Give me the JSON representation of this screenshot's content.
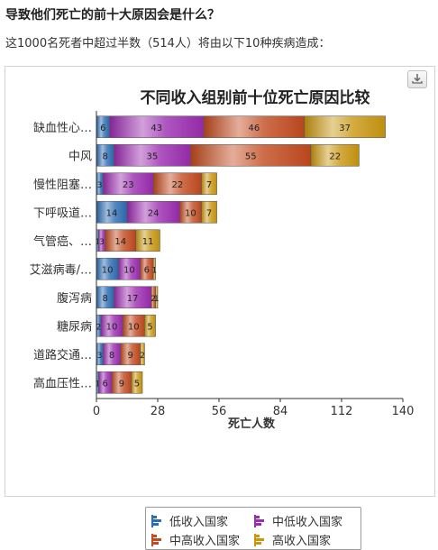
{
  "page": {
    "heading": "导致他们死亡的前十大原因会是什么？",
    "intro": "这1000名死者中超过半数（514人）将由以下10种疾病造成："
  },
  "toolbar": {
    "export_icon": "download-icon"
  },
  "chart_data": {
    "type": "bar",
    "orientation": "horizontal",
    "stacked": true,
    "title": "不同收入组别前十位死亡原因比较",
    "xlabel": "死亡人数",
    "ylabel": "",
    "xlim": [
      0,
      140
    ],
    "xticks": [
      "0",
      "28",
      "56",
      "84",
      "112",
      "140"
    ],
    "grid": false,
    "legend_position": "bottom",
    "categories": [
      "缺血性心…",
      "中风",
      "慢性阻塞…",
      "下呼吸道…",
      "气管癌、…",
      "艾滋病毒/…",
      "腹泻病",
      "糖尿病",
      "道路交通…",
      "高血压性…"
    ],
    "series": [
      {
        "name": "低收入国家",
        "color": "#2b6cb3",
        "values": [
          6,
          8,
          3,
          14,
          1,
          10,
          8,
          2,
          3,
          1
        ]
      },
      {
        "name": "中低收入国家",
        "color": "#9b2bb0",
        "values": [
          43,
          35,
          23,
          24,
          3,
          10,
          17,
          10,
          8,
          6
        ]
      },
      {
        "name": "中高收入国家",
        "color": "#c24a1e",
        "values": [
          46,
          55,
          22,
          10,
          14,
          6,
          2,
          10,
          9,
          9
        ]
      },
      {
        "name": "高收入国家",
        "color": "#c8960f",
        "values": [
          37,
          22,
          7,
          7,
          11,
          1,
          1,
          5,
          2,
          5
        ]
      }
    ]
  }
}
